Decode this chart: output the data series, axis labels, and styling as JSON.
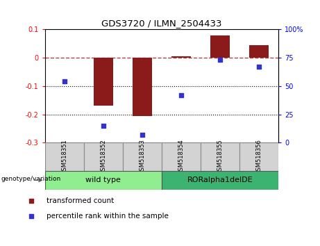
{
  "title": "GDS3720 / ILMN_2504433",
  "samples": [
    "GSM518351",
    "GSM518352",
    "GSM518353",
    "GSM518354",
    "GSM518355",
    "GSM518356"
  ],
  "bar_values": [
    0.0,
    -0.17,
    -0.205,
    0.005,
    0.08,
    0.045
  ],
  "scatter_percentiles": [
    54,
    15,
    7,
    42,
    73,
    67
  ],
  "bar_color": "#8B1A1A",
  "scatter_color": "#3333CC",
  "ylim_left": [
    -0.3,
    0.1
  ],
  "ylim_right": [
    0,
    100
  ],
  "right_ticks": [
    0,
    25,
    50,
    75,
    100
  ],
  "right_tick_labels": [
    "0",
    "25",
    "50",
    "75",
    "100%"
  ],
  "groups": [
    {
      "label": "wild type",
      "indices": [
        0,
        1,
        2
      ],
      "color": "#90EE90"
    },
    {
      "label": "RORalpha1delDE",
      "indices": [
        3,
        4,
        5
      ],
      "color": "#3CB371"
    }
  ],
  "genotype_label": "genotype/variation",
  "legend_entries": [
    {
      "label": "transformed count",
      "color": "#8B1A1A"
    },
    {
      "label": "percentile rank within the sample",
      "color": "#3333CC"
    }
  ],
  "hline_y": 0.0,
  "dotted_lines": [
    -0.1,
    -0.2
  ],
  "bar_width": 0.5,
  "fig_width": 4.61,
  "fig_height": 3.54,
  "left_ticks": [
    -0.3,
    -0.2,
    -0.1,
    0.0,
    0.1
  ],
  "left_tick_labels": [
    "-0.3",
    "-0.2",
    "-0.1",
    "0",
    "0.1"
  ]
}
